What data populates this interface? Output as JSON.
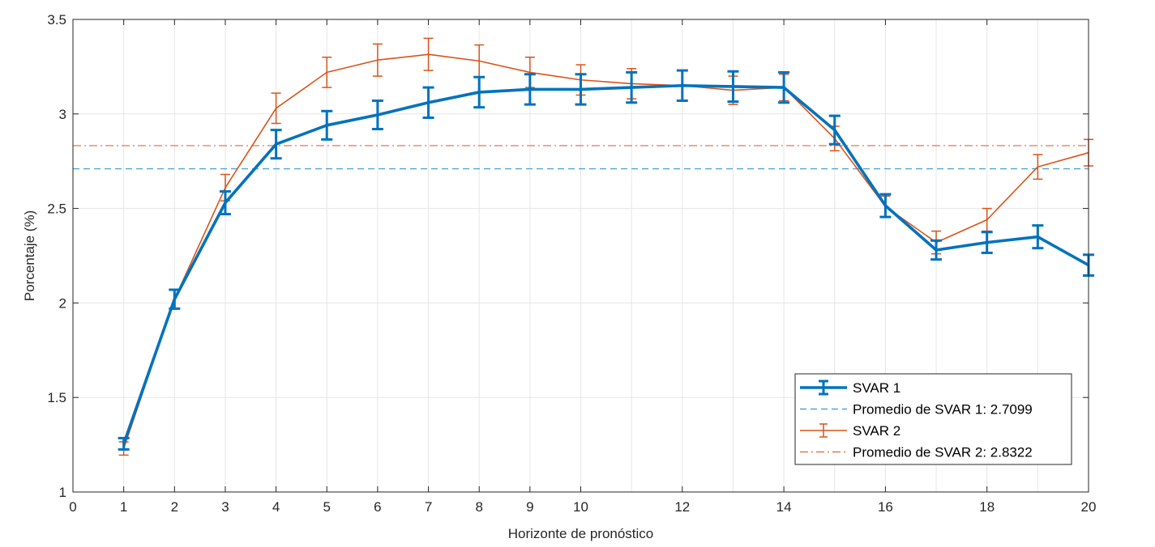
{
  "chart_data": {
    "type": "line",
    "title": "",
    "xlabel": "Horizonte de pronóstico",
    "ylabel": "Porcentaje (%)",
    "xlim": [
      0,
      20
    ],
    "ylim": [
      1,
      3.5
    ],
    "xticks": [
      0,
      1,
      2,
      3,
      4,
      5,
      6,
      7,
      8,
      9,
      10,
      12,
      14,
      16,
      18,
      20
    ],
    "yticks": [
      1,
      1.5,
      2,
      2.5,
      3,
      3.5
    ],
    "x_grid_values": [
      1,
      2,
      3,
      4,
      5,
      6,
      7,
      8,
      9,
      10,
      11,
      12,
      13,
      14,
      15,
      16,
      17,
      18,
      19,
      20
    ],
    "grid": true,
    "legend_position": "bottom-right",
    "x": [
      1,
      2,
      3,
      4,
      5,
      6,
      7,
      8,
      9,
      10,
      11,
      12,
      13,
      14,
      15,
      16,
      17,
      18,
      19,
      20
    ],
    "series": [
      {
        "name": "SVAR 1",
        "color": "#0072BD",
        "style": "solid-errorbar",
        "values": [
          1.255,
          2.02,
          2.53,
          2.84,
          2.94,
          2.995,
          3.06,
          3.115,
          3.13,
          3.13,
          3.14,
          3.15,
          3.145,
          3.14,
          2.915,
          2.515,
          2.28,
          2.32,
          2.35,
          2.2
        ],
        "errors": [
          0.03,
          0.05,
          0.06,
          0.075,
          0.075,
          0.075,
          0.08,
          0.08,
          0.08,
          0.08,
          0.08,
          0.08,
          0.08,
          0.08,
          0.075,
          0.06,
          0.05,
          0.055,
          0.06,
          0.055
        ]
      },
      {
        "name": "Promedio de SVAR 1: 2.7099",
        "color": "#4DA6D9",
        "style": "dashed",
        "constant": 2.7099
      },
      {
        "name": "SVAR 2",
        "color": "#D95319",
        "style": "thin-errorbar",
        "values": [
          1.23,
          2.02,
          2.61,
          3.03,
          3.22,
          3.285,
          3.315,
          3.28,
          3.22,
          3.18,
          3.16,
          3.15,
          3.125,
          3.14,
          2.87,
          2.51,
          2.32,
          2.44,
          2.72,
          2.795
        ],
        "errors": [
          0.035,
          0.05,
          0.07,
          0.08,
          0.08,
          0.085,
          0.085,
          0.085,
          0.08,
          0.08,
          0.08,
          0.08,
          0.075,
          0.07,
          0.065,
          0.055,
          0.06,
          0.06,
          0.065,
          0.07
        ]
      },
      {
        "name": "Promedio de SVAR 2: 2.8322",
        "color": "#E07850",
        "style": "dashdot",
        "constant": 2.8322
      }
    ]
  }
}
